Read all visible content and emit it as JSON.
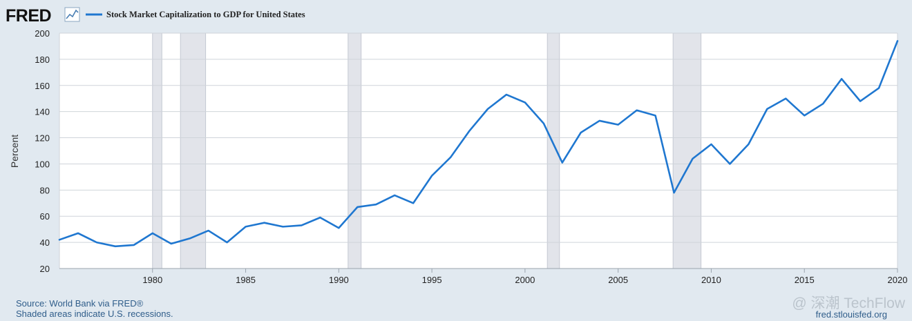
{
  "header": {
    "logo_text": "FRED",
    "logo_icon": "chart-line-icon",
    "series_title": "Stock Market Capitalization to GDP for United States"
  },
  "footer": {
    "source": "Source: World Bank via FRED®",
    "note": "Shaded areas indicate U.S. recessions.",
    "site": "fred.stlouisfed.org"
  },
  "watermark": {
    "text": "@ 深潮 TechFlow"
  },
  "colors": {
    "line": "#1f77d0",
    "recession": "#e2e4ea",
    "background": "#e1e9f0",
    "plot_bg": "#ffffff",
    "grid": "#cfd4da"
  },
  "chart_data": {
    "type": "line",
    "title": "Stock Market Capitalization to GDP for United States",
    "xlabel": "",
    "ylabel": "Percent",
    "xlim": [
      1975,
      2020
    ],
    "ylim": [
      20,
      200
    ],
    "xticks": [
      1980,
      1985,
      1990,
      1995,
      2000,
      2005,
      2010,
      2015,
      2020
    ],
    "yticks": [
      20,
      40,
      60,
      80,
      100,
      120,
      140,
      160,
      180,
      200
    ],
    "grid": true,
    "legend": "top-left",
    "recessions": [
      [
        1980.0,
        1980.5
      ],
      [
        1981.5,
        1982.85
      ],
      [
        1990.5,
        1991.2
      ],
      [
        2001.2,
        2001.85
      ],
      [
        2007.95,
        2009.45
      ]
    ],
    "series": [
      {
        "name": "Stock Market Capitalization to GDP for United States",
        "x": [
          1975,
          1976,
          1977,
          1978,
          1979,
          1980,
          1981,
          1982,
          1983,
          1984,
          1985,
          1986,
          1987,
          1988,
          1989,
          1990,
          1991,
          1992,
          1993,
          1994,
          1995,
          1996,
          1997,
          1998,
          1999,
          2000,
          2001,
          2002,
          2003,
          2004,
          2005,
          2006,
          2007,
          2008,
          2009,
          2010,
          2011,
          2012,
          2013,
          2014,
          2015,
          2016,
          2017,
          2018,
          2019,
          2020
        ],
        "values": [
          42,
          47,
          40,
          37,
          38,
          47,
          39,
          43,
          49,
          40,
          52,
          55,
          52,
          53,
          59,
          51,
          67,
          69,
          76,
          70,
          91,
          105,
          125,
          142,
          153,
          147,
          131,
          101,
          124,
          133,
          130,
          141,
          137,
          78,
          104,
          115,
          100,
          115,
          142,
          150,
          137,
          146,
          165,
          148,
          158,
          194
        ]
      }
    ]
  }
}
